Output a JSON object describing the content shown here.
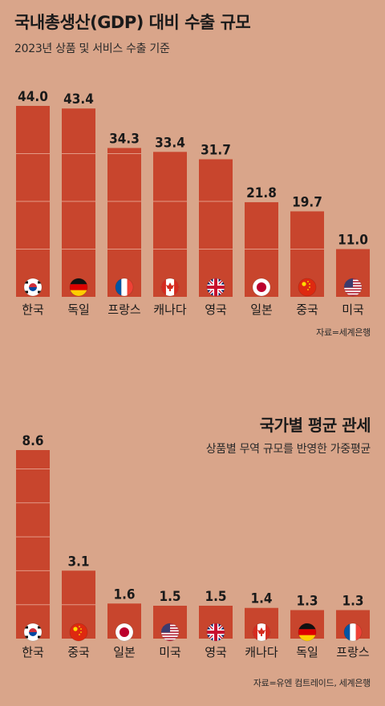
{
  "chart_data": [
    {
      "type": "bar",
      "title": "국내총생산(GDP) 대비 수출 규모",
      "subtitle": "2023년 상품 및 서비스 수출 기준",
      "source": "자료=세계은행",
      "categories": [
        "한국",
        "독일",
        "프랑스",
        "캐나다",
        "영국",
        "일본",
        "중국",
        "미국"
      ],
      "values": [
        44.0,
        43.4,
        34.3,
        33.4,
        31.7,
        21.8,
        19.7,
        11.0
      ],
      "value_labels": [
        "44.0",
        "43.4",
        "34.3",
        "33.4",
        "31.7",
        "21.8",
        "19.7",
        "11.0"
      ],
      "flags": [
        "flag-korea-icon",
        "flag-germany-icon",
        "flag-france-icon",
        "flag-canada-icon",
        "flag-uk-icon",
        "flag-japan-icon",
        "flag-china-icon",
        "flag-usa-icon"
      ],
      "ylim": [
        0,
        44.0
      ]
    },
    {
      "type": "bar",
      "title": "국가별 평균 관세",
      "subtitle": "상품별 무역 규모를 반영한 가중평균",
      "source": "자료=유엔 컴트레이드, 세계은행",
      "categories": [
        "한국",
        "중국",
        "일본",
        "미국",
        "영국",
        "캐나다",
        "독일",
        "프랑스"
      ],
      "values": [
        8.6,
        3.1,
        1.6,
        1.5,
        1.5,
        1.4,
        1.3,
        1.3
      ],
      "value_labels": [
        "8.6",
        "3.1",
        "1.6",
        "1.5",
        "1.5",
        "1.4",
        "1.3",
        "1.3"
      ],
      "flags": [
        "flag-korea-icon",
        "flag-china-icon",
        "flag-japan-icon",
        "flag-usa-icon",
        "flag-uk-icon",
        "flag-canada-icon",
        "flag-germany-icon",
        "flag-france-icon"
      ],
      "ylim": [
        0,
        8.6
      ]
    }
  ],
  "colors": {
    "background": "#d9a58a",
    "bar": "#c8452d",
    "bar_divider": "#e39a86"
  }
}
